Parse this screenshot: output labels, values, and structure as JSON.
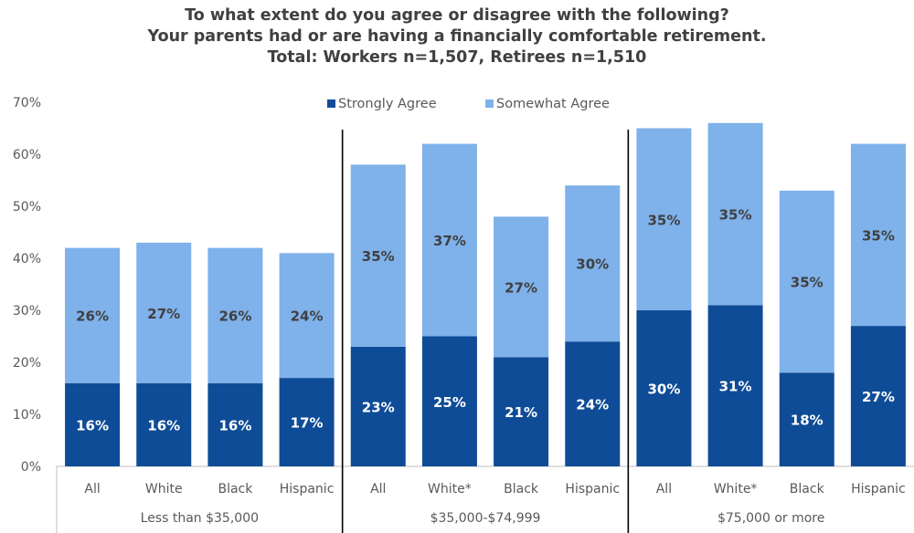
{
  "chart_data": {
    "type": "bar",
    "stacked": true,
    "title_lines": [
      "To what extent do you agree or disagree with the following?",
      "Your parents had or are having a financially comfortable retirement.",
      "Total: Workers n=1,507, Retirees n=1,510"
    ],
    "groups": [
      "Less than $35,000",
      "$35,000-$74,999",
      "$75,000 or more"
    ],
    "categories": [
      "All",
      "White",
      "Black",
      "Hispanic",
      "All",
      "White*",
      "Black",
      "Hispanic",
      "All",
      "White*",
      "Black",
      "Hispanic"
    ],
    "category_group": [
      0,
      0,
      0,
      0,
      1,
      1,
      1,
      1,
      2,
      2,
      2,
      2
    ],
    "series": [
      {
        "name": "Strongly Agree",
        "color": "#0f4c97",
        "values": [
          16,
          16,
          16,
          17,
          23,
          25,
          21,
          24,
          30,
          31,
          18,
          27
        ],
        "labels": [
          "16%",
          "16%",
          "16%",
          "17%",
          "23%",
          "25%",
          "21%",
          "24%",
          "30%",
          "31%",
          "18%",
          "27%"
        ]
      },
      {
        "name": "Somewhat Agree",
        "color": "#7fb1ea",
        "values": [
          26,
          27,
          26,
          24,
          35,
          37,
          27,
          30,
          35,
          35,
          35,
          35
        ],
        "labels": [
          "26%",
          "27%",
          "26%",
          "24%",
          "35%",
          "37%",
          "27%",
          "30%",
          "35%",
          "35%",
          "35%",
          "35%"
        ]
      }
    ],
    "yticks": [
      "0%",
      "10%",
      "20%",
      "30%",
      "40%",
      "50%",
      "60%",
      "70%"
    ],
    "ylim": [
      0,
      70
    ],
    "legend_position": "top"
  }
}
